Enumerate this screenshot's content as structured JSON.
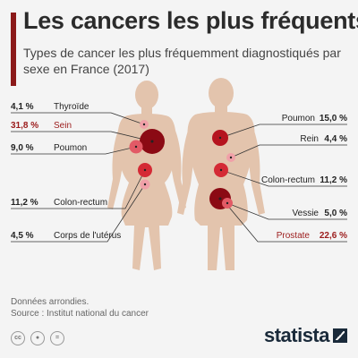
{
  "header": {
    "title": "Les cancers les plus fréquents",
    "subtitle": "Types de cancer les plus fréquemment diagnostiqués par sexe en France (2017)"
  },
  "colors": {
    "accent": "#8b1a1a",
    "body": "#e3c4ad",
    "leader_line": "#333333",
    "highlight_text": "#9b1b1b",
    "dot_scale": [
      "#f0a0a8",
      "#e25a66",
      "#d42a35",
      "#b5141f",
      "#8b0a14"
    ]
  },
  "chart_data": {
    "type": "bubble",
    "title": "Les cancers les plus fréquents",
    "subtitle": "Types de cancer les plus fréquemment diagnostiqués par sexe en France (2017)",
    "unit": "%",
    "series": [
      {
        "points": [
          {
            "label": "Thyroïde",
            "value": 4.1,
            "display": "4,1 %",
            "highlight": false
          },
          {
            "label": "Sein",
            "value": 31.8,
            "display": "31,8 %",
            "highlight": true
          },
          {
            "label": "Poumon",
            "value": 9.0,
            "display": "9,0 %",
            "highlight": false
          },
          {
            "label": "Colon-rectum",
            "value": 11.2,
            "display": "11,2 %",
            "highlight": false
          },
          {
            "label": "Corps de l'utérus",
            "value": 4.5,
            "display": "4,5 %",
            "highlight": false
          }
        ]
      },
      {
        "points": [
          {
            "label": "Poumon",
            "value": 15.0,
            "display": "15,0 %",
            "highlight": false
          },
          {
            "label": "Rein",
            "value": 4.4,
            "display": "4,4 %",
            "highlight": false
          },
          {
            "label": "Colon-rectum",
            "value": 11.2,
            "display": "11,2 %",
            "highlight": false
          },
          {
            "label": "Vessie",
            "value": 5.0,
            "display": "5,0 %",
            "highlight": false
          },
          {
            "label": "Prostate",
            "value": 22.6,
            "display": "22,6 %",
            "highlight": true
          }
        ]
      }
    ]
  },
  "footer": {
    "note": "Données arrondies.",
    "source": "Source : Institut national du cancer",
    "brand": "statista",
    "license_icons": [
      "cc-icon",
      "person-icon",
      "equals-icon"
    ]
  }
}
